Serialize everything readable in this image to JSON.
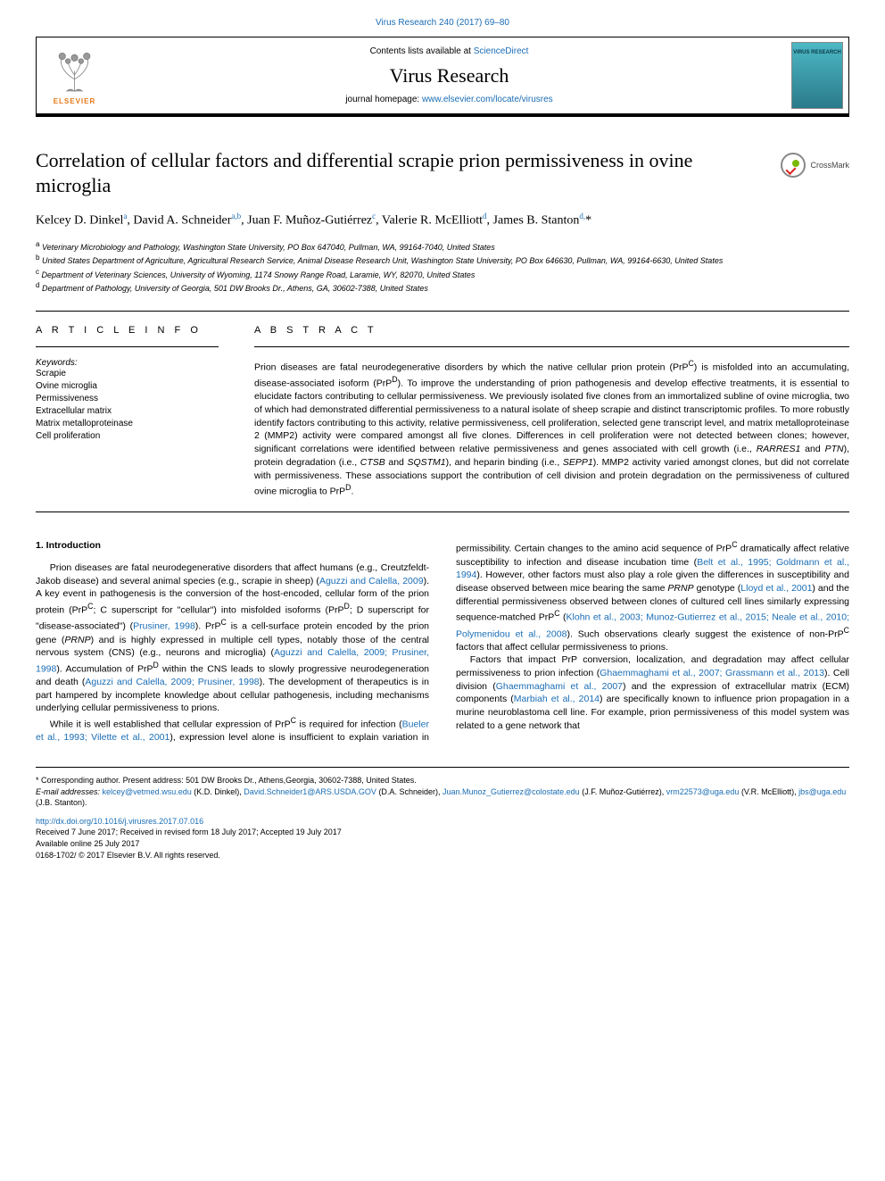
{
  "header": {
    "top_link": "Virus Research 240 (2017) 69–80",
    "contents_text": "Contents lists available at ",
    "contents_link": "ScienceDirect",
    "journal_name": "Virus Research",
    "homepage_text": "journal homepage: ",
    "homepage_link": "www.elsevier.com/locate/virusres",
    "elsevier_label": "ELSEVIER",
    "cover_label": "VIRUS\nRESEARCH"
  },
  "title": "Correlation of cellular factors and differential scrapie prion permissiveness in ovine microglia",
  "crossmark_label": "CrossMark",
  "authors_html": "Kelcey D. Dinkel<sup>a</sup>, David A. Schneider<sup>a,b</sup>, Juan F. Muñoz-Gutiérrez<sup>c</sup>, Valerie R. McElliott<sup>d</sup>, James B. Stanton<sup>d,</sup>*",
  "affiliations": [
    {
      "sup": "a",
      "text": "Veterinary Microbiology and Pathology, Washington State University, PO Box 647040, Pullman, WA, 99164-7040, United States"
    },
    {
      "sup": "b",
      "text": "United States Department of Agriculture, Agricultural Research Service, Animal Disease Research Unit, Washington State University, PO Box 646630, Pullman, WA, 99164-6630, United States"
    },
    {
      "sup": "c",
      "text": "Department of Veterinary Sciences, University of Wyoming, 1174 Snowy Range Road, Laramie, WY, 82070, United States"
    },
    {
      "sup": "d",
      "text": "Department of Pathology, University of Georgia, 501 DW Brooks Dr., Athens, GA, 30602-7388, United States"
    }
  ],
  "article_info": {
    "heading": "A R T I C L E  I N F O",
    "keywords_label": "Keywords:",
    "keywords": [
      "Scrapie",
      "Ovine microglia",
      "Permissiveness",
      "Extracellular matrix",
      "Matrix metalloproteinase",
      "Cell proliferation"
    ]
  },
  "abstract": {
    "heading": "A B S T R A C T",
    "text": "Prion diseases are fatal neurodegenerative disorders by which the native cellular prion protein (PrPC) is misfolded into an accumulating, disease-associated isoform (PrPD). To improve the understanding of prion pathogenesis and develop effective treatments, it is essential to elucidate factors contributing to cellular permissiveness. We previously isolated five clones from an immortalized subline of ovine microglia, two of which had demonstrated differential permissiveness to a natural isolate of sheep scrapie and distinct transcriptomic profiles. To more robustly identify factors contributing to this activity, relative permissiveness, cell proliferation, selected gene transcript level, and matrix metalloproteinase 2 (MMP2) activity were compared amongst all five clones. Differences in cell proliferation were not detected between clones; however, significant correlations were identified between relative permissiveness and genes associated with cell growth (i.e., RARRES1 and PTN), protein degradation (i.e., CTSB and SQSTM1), and heparin binding (i.e., SEPP1). MMP2 activity varied amongst clones, but did not correlate with permissiveness. These associations support the contribution of cell division and protein degradation on the permissiveness of cultured ovine microglia to PrPD."
  },
  "introduction": {
    "heading": "1. Introduction",
    "p1_pre": "Prion diseases are fatal neurodegenerative disorders that affect humans (e.g., Creutzfeldt-Jakob disease) and several animal species (e.g., scrapie in sheep) (",
    "p1_ref1": "Aguzzi and Calella, 2009",
    "p1_mid1": "). A key event in pathogenesis is the conversion of the host-encoded, cellular form of the prion protein (PrPC; C superscript for \"cellular\") into misfolded isoforms (PrPD; D superscript for \"disease-associated\") (",
    "p1_ref2": "Prusiner, 1998",
    "p1_mid2": "). PrPC is a cell-surface protein encoded by the prion gene (PRNP) and is highly expressed in multiple cell types, notably those of the central nervous system (CNS) (e.g., neurons and microglia) (",
    "p1_ref3": "Aguzzi and Calella, 2009; Prusiner, 1998",
    "p1_mid3": "). Accumulation of PrPD within the CNS leads to slowly progressive neurodegeneration and death (",
    "p1_ref4": "Aguzzi and Calella, 2009; Prusiner, 1998",
    "p1_mid4": "). The development of therapeutics is in part hampered by incomplete knowledge about cellular pathogenesis, including mechanisms underlying cellular permissiveness to prions.",
    "p2_pre": "While it is well established that cellular expression of PrPC is required for infection (",
    "p2_ref1": "Bueler et al., 1993; Vilette et al., 2001",
    "p2_mid1": "), expression level alone is insufficient to explain variation in permissibility. Certain changes to the amino acid sequence of PrPC dramatically affect relative susceptibility to infection and disease incubation time (",
    "p2_ref2": "Belt et al., 1995; Goldmann et al., 1994",
    "p2_mid2": "). However, other factors must also play a role given the differences in susceptibility and disease observed between mice bearing the same PRNP genotype (",
    "p2_ref3": "Lloyd et al., 2001",
    "p2_mid3": ") and the differential permissiveness observed between clones of cultured cell lines similarly expressing sequence-matched PrPC (",
    "p2_ref4": "Klohn et al., 2003; Munoz-Gutierrez et al., 2015; Neale et al., 2010; Polymenidou et al., 2008",
    "p2_mid4": "). Such observations clearly suggest the existence of non-PrPC factors that affect cellular permissiveness to prions.",
    "p3_pre": "Factors that impact PrP conversion, localization, and degradation may affect cellular permissiveness to prion infection (",
    "p3_ref1": "Ghaemmaghami et al., 2007; Grassmann et al., 2013",
    "p3_mid1": "). Cell division (",
    "p3_ref2": "Ghaemmaghami et al., 2007",
    "p3_mid2": ") and the expression of extracellular matrix (ECM) components (",
    "p3_ref3": "Marbiah et al., 2014",
    "p3_mid3": ") are specifically known to influence prion propagation in a murine neuroblastoma cell line. For example, prion permissiveness of this model system was related to a gene network that"
  },
  "footer": {
    "corr": "* Corresponding author. Present address: 501 DW Brooks Dr., Athens,Georgia, 30602-7388, United States.",
    "email_label": "E-mail addresses: ",
    "emails": [
      {
        "addr": "kelcey@vetmed.wsu.edu",
        "who": " (K.D. Dinkel), "
      },
      {
        "addr": "David.Schneider1@ARS.USDA.GOV",
        "who": " (D.A. Schneider), "
      },
      {
        "addr": "Juan.Munoz_Gutierrez@colostate.edu",
        "who": " (J.F. Muñoz-Gutiérrez), "
      },
      {
        "addr": "vrm22573@uga.edu",
        "who": " (V.R. McElliott), "
      },
      {
        "addr": "jbs@uga.edu",
        "who": " (J.B. Stanton)."
      }
    ],
    "doi": "http://dx.doi.org/10.1016/j.virusres.2017.07.016",
    "received": "Received 7 June 2017; Received in revised form 18 July 2017; Accepted 19 July 2017",
    "available": "Available online 25 July 2017",
    "copyright": "0168-1702/ © 2017 Elsevier B.V. All rights reserved."
  },
  "colors": {
    "link": "#1a6db5",
    "elsevier_orange": "#e67817",
    "cover_grad_top": "#4db8c4",
    "cover_grad_bottom": "#2a7a8a"
  }
}
